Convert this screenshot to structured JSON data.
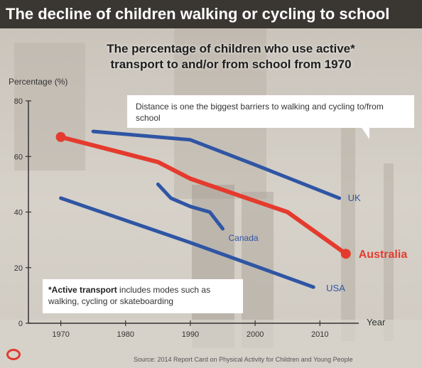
{
  "header": {
    "title": "The decline of children walking or cycling to school"
  },
  "callout": {
    "text": "Distance is one the biggest barriers to walking and cycling to/from school"
  },
  "footnote": {
    "bold": "*Active transport",
    "text": " includes modes such as walking, cycling or skateboarding"
  },
  "source": "Source: 2014 Report Card on Physical Activity for Children and Young People",
  "colors": {
    "blue": "#2f55a4",
    "red": "#e43b2e",
    "header": "#3a3733",
    "logo": "#e03a2d"
  },
  "chart_data": {
    "type": "line",
    "title": "The percentage of children who use active* transport to and/or from school from 1970",
    "ylabel": "Percentage (%)",
    "xlabel": "Year",
    "xlim": [
      1965,
      2016
    ],
    "ylim": [
      0,
      80
    ],
    "xticks": [
      1970,
      1980,
      1990,
      2000,
      2010
    ],
    "yticks": [
      0,
      20,
      40,
      60,
      80
    ],
    "grid": false,
    "series": [
      {
        "name": "UK",
        "color": "#2f55a4",
        "x": [
          1975,
          1985,
          1990,
          2000,
          2013
        ],
        "y": [
          69,
          67,
          66,
          57,
          45
        ]
      },
      {
        "name": "Australia",
        "color": "#e43b2e",
        "x": [
          1970,
          1980,
          1985,
          1990,
          2000,
          2005,
          2014
        ],
        "y": [
          67,
          61,
          58,
          52,
          44,
          40,
          25
        ]
      },
      {
        "name": "Canada",
        "color": "#2f55a4",
        "x": [
          1985,
          1987,
          1990,
          1993,
          1995
        ],
        "y": [
          50,
          45,
          42,
          40,
          34
        ]
      },
      {
        "name": "USA",
        "color": "#2f55a4",
        "x": [
          1970,
          1990,
          2009
        ],
        "y": [
          45,
          29,
          13
        ]
      }
    ]
  }
}
